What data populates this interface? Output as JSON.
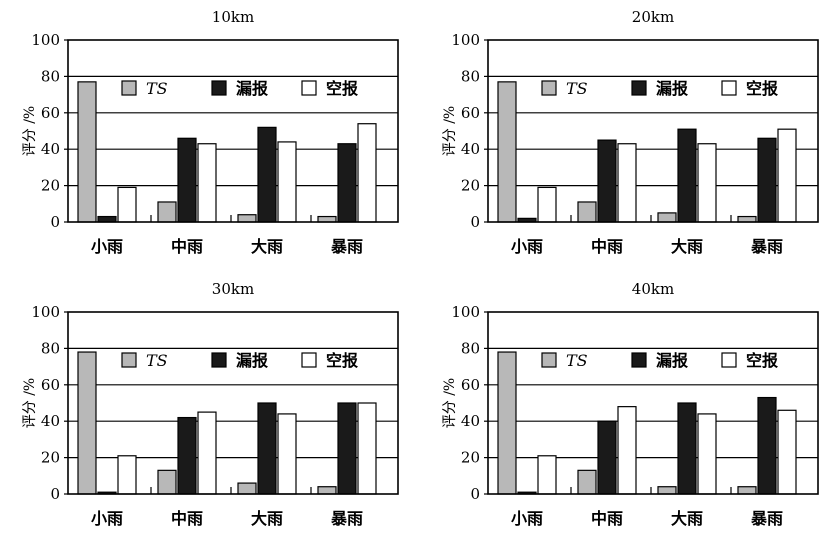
{
  "chart_data": [
    {
      "type": "bar",
      "title": "10km",
      "ylabel": "评分 /%",
      "xlabel": "",
      "ylim": [
        0,
        100
      ],
      "yticks": [
        0,
        20,
        40,
        60,
        80,
        100
      ],
      "categories": [
        "小雨",
        "中雨",
        "大雨",
        "暴雨"
      ],
      "grid": "horizontal",
      "legend": "inside-top",
      "series": [
        {
          "name": "TS",
          "color": "#b8b8b8",
          "values": [
            77,
            11,
            4,
            3
          ]
        },
        {
          "name": "漏报",
          "color": "#1a1a1a",
          "values": [
            3,
            46,
            52,
            43
          ]
        },
        {
          "name": "空报",
          "color": "#ffffff",
          "values": [
            19,
            43,
            44,
            54
          ]
        }
      ]
    },
    {
      "type": "bar",
      "title": "20km",
      "ylabel": "评分 /%",
      "xlabel": "",
      "ylim": [
        0,
        100
      ],
      "yticks": [
        0,
        20,
        40,
        60,
        80,
        100
      ],
      "categories": [
        "小雨",
        "中雨",
        "大雨",
        "暴雨"
      ],
      "grid": "horizontal",
      "legend": "inside-top",
      "series": [
        {
          "name": "TS",
          "color": "#b8b8b8",
          "values": [
            77,
            11,
            5,
            3
          ]
        },
        {
          "name": "漏报",
          "color": "#1a1a1a",
          "values": [
            2,
            45,
            51,
            46
          ]
        },
        {
          "name": "空报",
          "color": "#ffffff",
          "values": [
            19,
            43,
            43,
            51
          ]
        }
      ]
    },
    {
      "type": "bar",
      "title": "30km",
      "ylabel": "评分 /%",
      "xlabel": "",
      "ylim": [
        0,
        100
      ],
      "yticks": [
        0,
        20,
        40,
        60,
        80,
        100
      ],
      "categories": [
        "小雨",
        "中雨",
        "大雨",
        "暴雨"
      ],
      "grid": "horizontal",
      "legend": "inside-top",
      "series": [
        {
          "name": "TS",
          "color": "#b8b8b8",
          "values": [
            78,
            13,
            6,
            4
          ]
        },
        {
          "name": "漏报",
          "color": "#1a1a1a",
          "values": [
            1,
            42,
            50,
            50
          ]
        },
        {
          "name": "空报",
          "color": "#ffffff",
          "values": [
            21,
            45,
            44,
            50
          ]
        }
      ]
    },
    {
      "type": "bar",
      "title": "40km",
      "ylabel": "评分 /%",
      "xlabel": "",
      "ylim": [
        0,
        100
      ],
      "yticks": [
        0,
        20,
        40,
        60,
        80,
        100
      ],
      "categories": [
        "小雨",
        "中雨",
        "大雨",
        "暴雨"
      ],
      "grid": "horizontal",
      "legend": "inside-top",
      "series": [
        {
          "name": "TS",
          "color": "#b8b8b8",
          "values": [
            78,
            13,
            4,
            4
          ]
        },
        {
          "name": "漏报",
          "color": "#1a1a1a",
          "values": [
            1,
            40,
            50,
            53
          ]
        },
        {
          "name": "空报",
          "color": "#ffffff",
          "values": [
            21,
            48,
            44,
            46
          ]
        }
      ]
    }
  ]
}
